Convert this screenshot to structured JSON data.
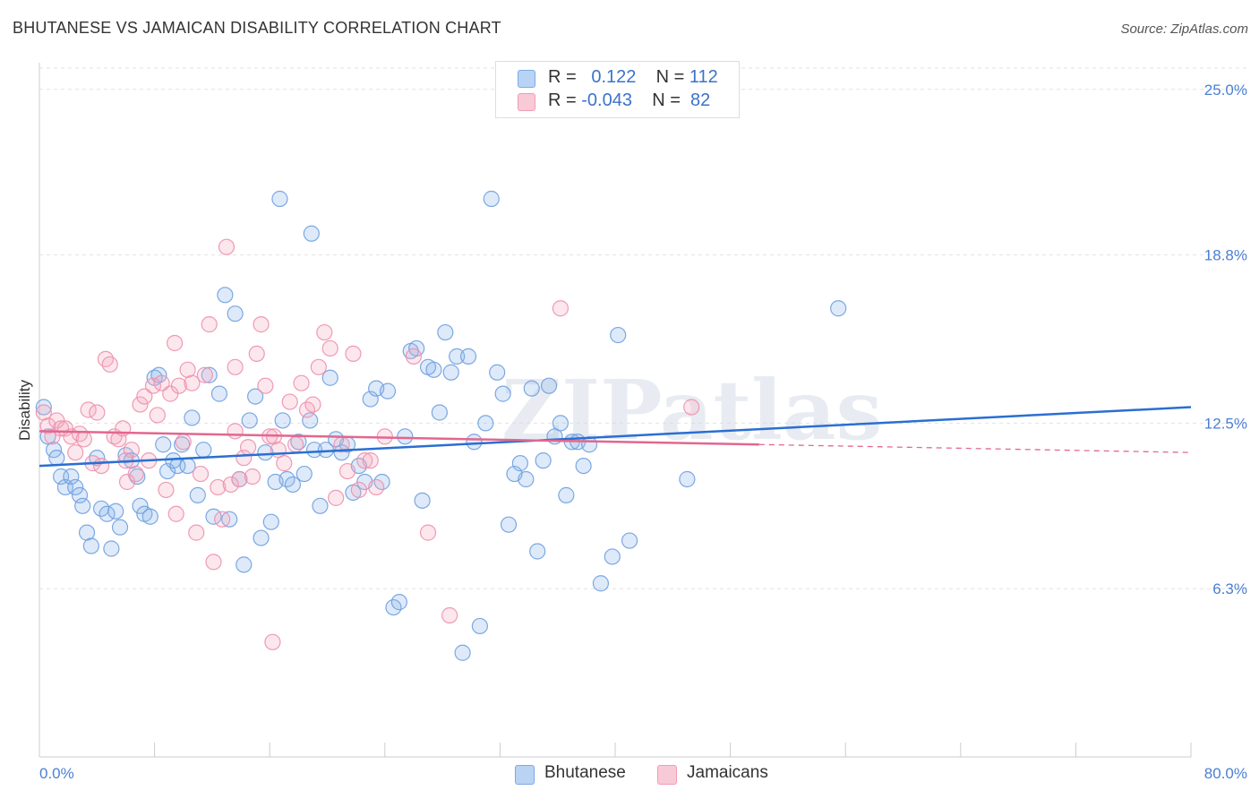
{
  "title": "BHUTANESE VS JAMAICAN DISABILITY CORRELATION CHART",
  "source": "Source: ZipAtlas.com",
  "watermark": "ZIPatlas",
  "legend": {
    "rows": [
      {
        "r_label": "R =",
        "r_value": "0.122",
        "n_label": "N =",
        "n_value": "112"
      },
      {
        "r_label": "R =",
        "r_value": "-0.043",
        "n_label": "N =",
        "n_value": "82"
      }
    ]
  },
  "chart_data": {
    "type": "scatter",
    "title": "BHUTANESE VS JAMAICAN DISABILITY CORRELATION CHART",
    "xlabel": "",
    "ylabel": "Disability",
    "xlim": [
      0,
      80
    ],
    "ylim": [
      0,
      26
    ],
    "x_tick_labels": [
      "0.0%",
      "80.0%"
    ],
    "y_ticks": [
      6.3,
      12.5,
      18.8,
      25.0
    ],
    "y_tick_labels": [
      "6.3%",
      "12.5%",
      "18.8%",
      "25.0%"
    ],
    "grid": "horizontal-dashed",
    "legend_position": "top-center",
    "series": [
      {
        "name": "Bhutanese",
        "color": "#7aaae6",
        "line_color": "#2a6fd1",
        "r": 0.122,
        "n": 112,
        "trend": {
          "x": [
            0,
            80
          ],
          "y": [
            10.9,
            13.1
          ]
        },
        "points": [
          [
            0.3,
            13.1
          ],
          [
            0.6,
            12.0
          ],
          [
            1.0,
            11.5
          ],
          [
            1.2,
            11.2
          ],
          [
            1.5,
            10.5
          ],
          [
            1.8,
            10.1
          ],
          [
            2.2,
            10.5
          ],
          [
            2.5,
            10.1
          ],
          [
            2.8,
            9.8
          ],
          [
            3.0,
            9.4
          ],
          [
            3.3,
            8.4
          ],
          [
            3.6,
            7.9
          ],
          [
            4.0,
            11.2
          ],
          [
            4.3,
            9.3
          ],
          [
            4.7,
            9.1
          ],
          [
            5.0,
            7.8
          ],
          [
            5.3,
            9.2
          ],
          [
            5.6,
            8.6
          ],
          [
            6.0,
            11.3
          ],
          [
            6.4,
            11.1
          ],
          [
            6.8,
            10.5
          ],
          [
            7.0,
            9.4
          ],
          [
            7.3,
            9.1
          ],
          [
            7.7,
            9.0
          ],
          [
            8.0,
            14.2
          ],
          [
            8.3,
            14.3
          ],
          [
            8.6,
            11.7
          ],
          [
            8.9,
            10.7
          ],
          [
            9.3,
            11.1
          ],
          [
            9.6,
            10.9
          ],
          [
            9.9,
            11.7
          ],
          [
            10.3,
            10.9
          ],
          [
            10.6,
            12.7
          ],
          [
            11.0,
            9.8
          ],
          [
            11.4,
            11.5
          ],
          [
            11.8,
            14.3
          ],
          [
            12.1,
            9.0
          ],
          [
            12.5,
            13.6
          ],
          [
            12.9,
            17.3
          ],
          [
            13.2,
            8.9
          ],
          [
            13.6,
            16.6
          ],
          [
            13.9,
            10.4
          ],
          [
            14.2,
            7.2
          ],
          [
            14.6,
            12.6
          ],
          [
            15.0,
            13.5
          ],
          [
            15.4,
            8.2
          ],
          [
            15.7,
            11.4
          ],
          [
            16.1,
            8.8
          ],
          [
            16.4,
            10.3
          ],
          [
            16.9,
            12.6
          ],
          [
            17.2,
            10.4
          ],
          [
            17.6,
            10.2
          ],
          [
            18.0,
            11.8
          ],
          [
            18.4,
            10.6
          ],
          [
            18.8,
            12.6
          ],
          [
            19.1,
            11.5
          ],
          [
            19.5,
            9.4
          ],
          [
            19.9,
            11.5
          ],
          [
            20.2,
            14.2
          ],
          [
            20.6,
            11.9
          ],
          [
            21.0,
            11.4
          ],
          [
            21.4,
            11.7
          ],
          [
            21.8,
            9.9
          ],
          [
            22.2,
            10.9
          ],
          [
            22.6,
            10.3
          ],
          [
            23.0,
            13.4
          ],
          [
            23.4,
            13.8
          ],
          [
            23.8,
            10.3
          ],
          [
            24.2,
            13.7
          ],
          [
            24.6,
            5.6
          ],
          [
            25.0,
            5.8
          ],
          [
            25.4,
            12.0
          ],
          [
            25.8,
            15.2
          ],
          [
            26.2,
            15.3
          ],
          [
            26.6,
            9.6
          ],
          [
            27.0,
            14.6
          ],
          [
            27.4,
            14.5
          ],
          [
            27.8,
            12.9
          ],
          [
            28.2,
            15.9
          ],
          [
            28.6,
            14.4
          ],
          [
            29.0,
            15.0
          ],
          [
            29.4,
            3.9
          ],
          [
            29.8,
            15.0
          ],
          [
            30.2,
            11.8
          ],
          [
            30.6,
            4.9
          ],
          [
            31.0,
            12.5
          ],
          [
            31.4,
            20.9
          ],
          [
            31.8,
            14.4
          ],
          [
            32.2,
            13.6
          ],
          [
            32.6,
            8.7
          ],
          [
            33.0,
            10.6
          ],
          [
            33.4,
            11.0
          ],
          [
            33.8,
            10.4
          ],
          [
            34.2,
            13.8
          ],
          [
            34.6,
            7.7
          ],
          [
            35.0,
            11.1
          ],
          [
            35.4,
            13.9
          ],
          [
            35.8,
            12.0
          ],
          [
            36.2,
            12.5
          ],
          [
            36.6,
            9.8
          ],
          [
            37.0,
            11.8
          ],
          [
            37.4,
            11.8
          ],
          [
            37.8,
            10.9
          ],
          [
            38.2,
            11.7
          ],
          [
            39.0,
            6.5
          ],
          [
            39.8,
            7.5
          ],
          [
            40.2,
            15.8
          ],
          [
            41.0,
            8.1
          ],
          [
            45.0,
            10.4
          ],
          [
            55.5,
            16.8
          ],
          [
            16.7,
            20.9
          ],
          [
            18.9,
            19.6
          ]
        ]
      },
      {
        "name": "Jamaicans",
        "color": "#f29bb6",
        "line_color": "#e2678f",
        "r": -0.043,
        "n": 82,
        "trend": {
          "x": [
            0,
            50
          ],
          "y": [
            12.2,
            11.7
          ]
        },
        "trend_extension": {
          "x": [
            50,
            80
          ],
          "y": [
            11.7,
            11.4
          ]
        },
        "points": [
          [
            0.3,
            12.9
          ],
          [
            0.6,
            12.4
          ],
          [
            0.9,
            12.0
          ],
          [
            1.2,
            12.6
          ],
          [
            1.5,
            12.3
          ],
          [
            1.8,
            12.3
          ],
          [
            2.2,
            12.0
          ],
          [
            2.5,
            11.4
          ],
          [
            2.8,
            12.1
          ],
          [
            3.1,
            11.9
          ],
          [
            3.4,
            13.0
          ],
          [
            3.7,
            11.0
          ],
          [
            4.0,
            12.9
          ],
          [
            4.3,
            10.9
          ],
          [
            4.6,
            14.9
          ],
          [
            4.9,
            14.7
          ],
          [
            5.2,
            12.0
          ],
          [
            5.5,
            11.9
          ],
          [
            5.8,
            12.3
          ],
          [
            6.1,
            10.3
          ],
          [
            6.4,
            11.5
          ],
          [
            6.7,
            10.6
          ],
          [
            7.0,
            13.2
          ],
          [
            7.3,
            13.5
          ],
          [
            7.6,
            11.1
          ],
          [
            7.9,
            13.9
          ],
          [
            8.2,
            12.8
          ],
          [
            8.5,
            14.0
          ],
          [
            8.8,
            10.0
          ],
          [
            9.1,
            13.6
          ],
          [
            9.4,
            15.5
          ],
          [
            9.7,
            13.9
          ],
          [
            10.0,
            11.8
          ],
          [
            10.3,
            14.5
          ],
          [
            10.6,
            14.0
          ],
          [
            10.9,
            8.4
          ],
          [
            11.2,
            10.6
          ],
          [
            11.5,
            14.3
          ],
          [
            11.8,
            16.2
          ],
          [
            12.1,
            7.3
          ],
          [
            12.4,
            10.1
          ],
          [
            12.7,
            8.9
          ],
          [
            13.0,
            19.1
          ],
          [
            13.3,
            10.2
          ],
          [
            13.6,
            12.2
          ],
          [
            13.9,
            10.4
          ],
          [
            14.2,
            11.2
          ],
          [
            14.5,
            11.6
          ],
          [
            14.8,
            10.5
          ],
          [
            15.1,
            15.1
          ],
          [
            15.4,
            16.2
          ],
          [
            15.7,
            13.9
          ],
          [
            16.0,
            12.0
          ],
          [
            16.3,
            12.0
          ],
          [
            16.6,
            11.5
          ],
          [
            17.0,
            11.0
          ],
          [
            17.4,
            13.3
          ],
          [
            17.8,
            11.7
          ],
          [
            18.2,
            14.0
          ],
          [
            18.6,
            13.0
          ],
          [
            19.0,
            13.2
          ],
          [
            19.4,
            14.6
          ],
          [
            19.8,
            15.9
          ],
          [
            20.2,
            15.3
          ],
          [
            20.6,
            9.7
          ],
          [
            21.0,
            11.7
          ],
          [
            21.4,
            10.7
          ],
          [
            21.8,
            15.1
          ],
          [
            22.2,
            10.0
          ],
          [
            22.6,
            11.1
          ],
          [
            23.0,
            11.1
          ],
          [
            23.4,
            10.1
          ],
          [
            24.0,
            12.0
          ],
          [
            26.0,
            15.0
          ],
          [
            27.0,
            8.4
          ],
          [
            28.5,
            5.3
          ],
          [
            36.2,
            16.8
          ],
          [
            45.3,
            13.1
          ],
          [
            16.2,
            4.3
          ],
          [
            13.6,
            14.6
          ],
          [
            9.5,
            9.1
          ],
          [
            6.0,
            11.1
          ]
        ]
      }
    ]
  },
  "bottom_legend": [
    {
      "label": "Bhutanese",
      "color": "#b9d3f4",
      "border": "#7aaae6"
    },
    {
      "label": "Jamaicans",
      "color": "#f8cad8",
      "border": "#f29bb6"
    }
  ]
}
